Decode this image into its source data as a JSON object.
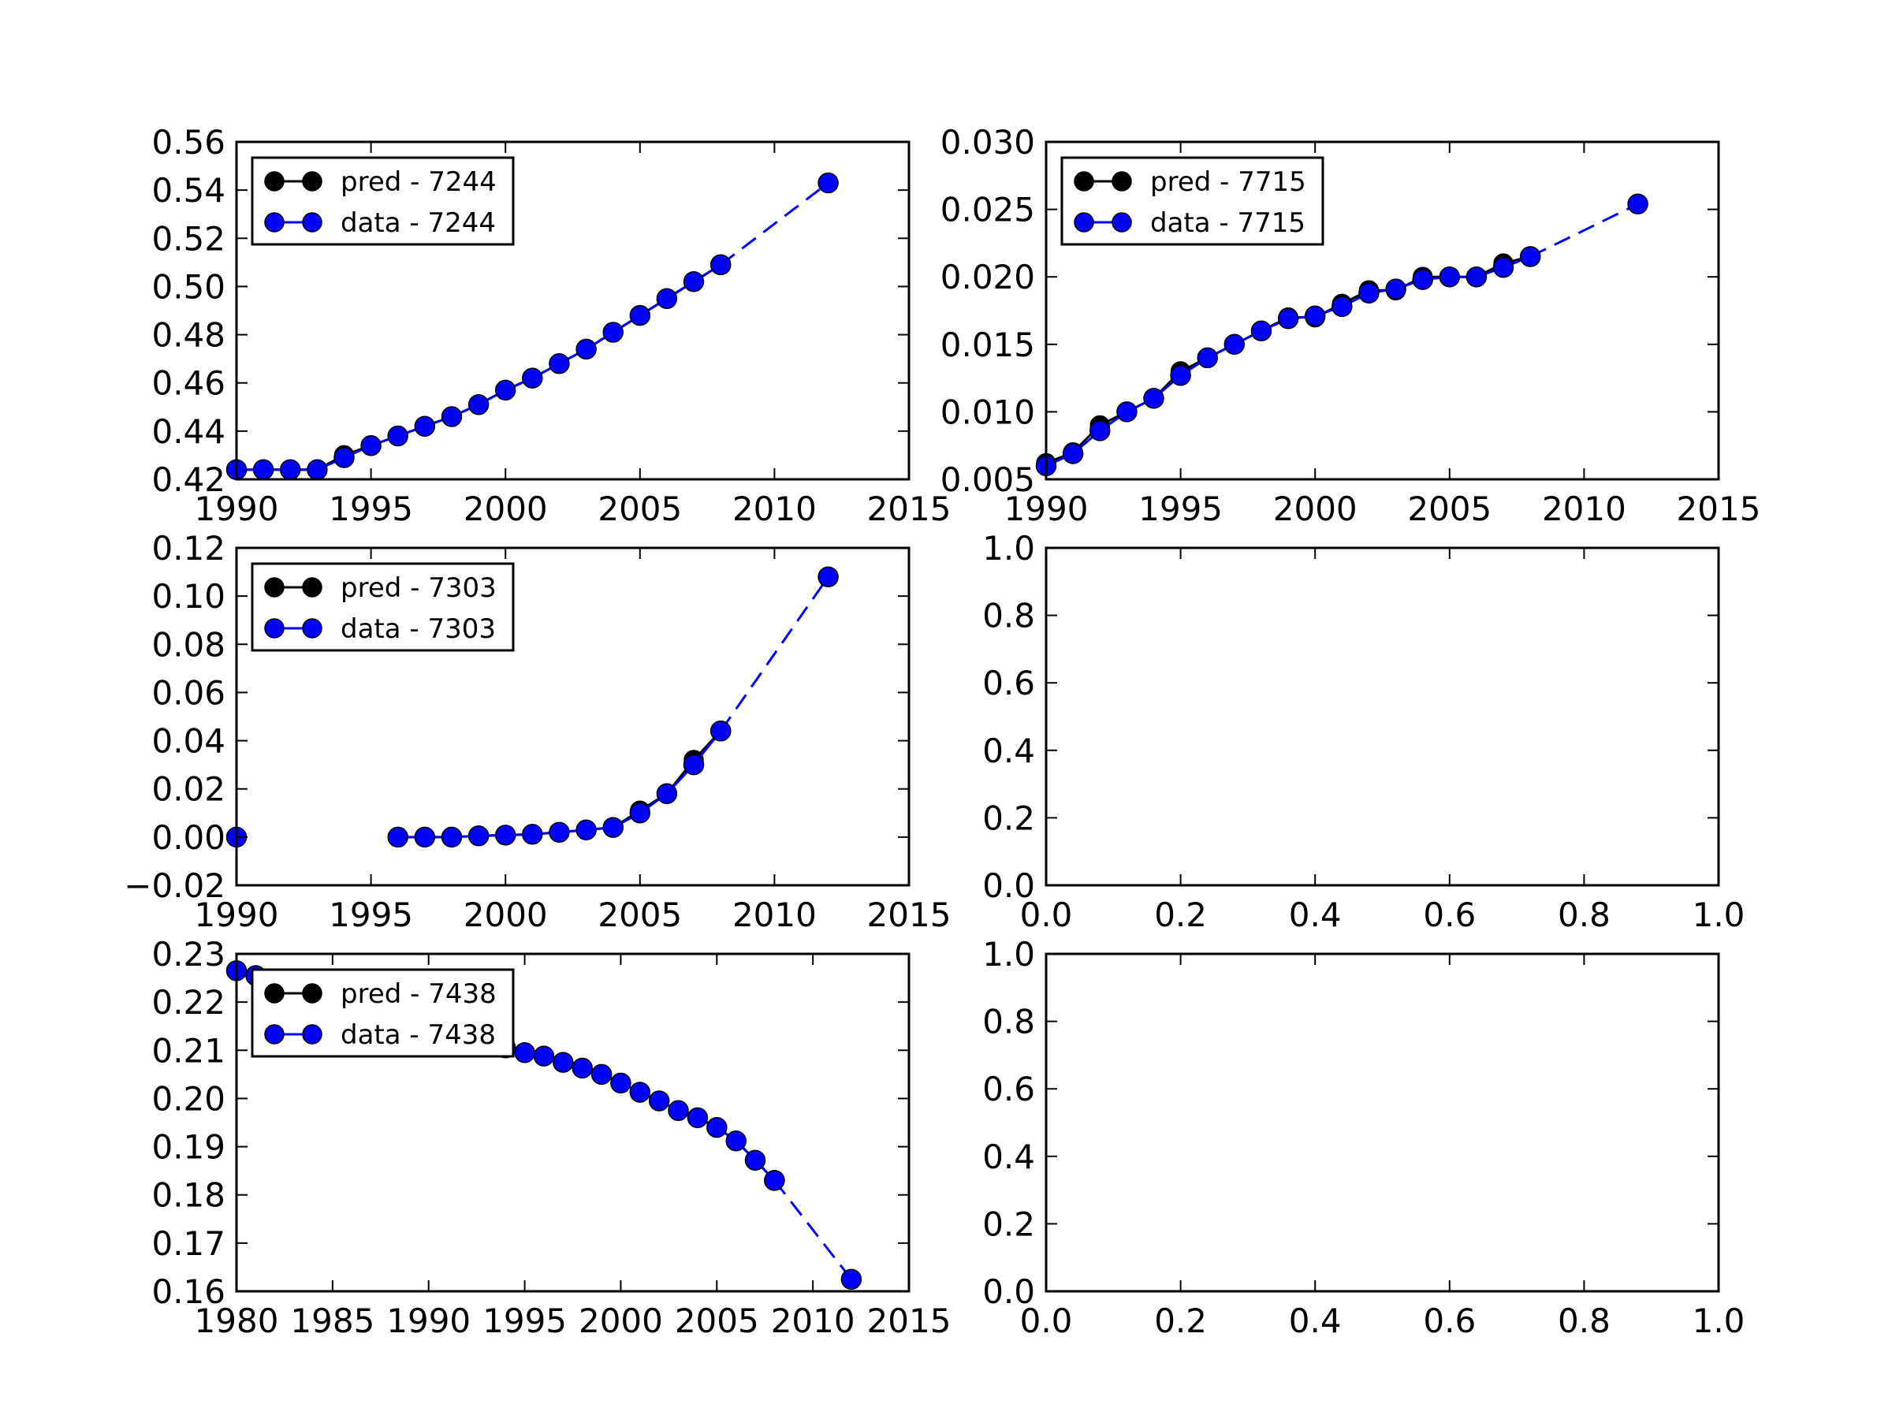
{
  "colors": {
    "pred": "#000000",
    "data": "#0000ff",
    "frame": "#000000",
    "background": "#ffffff"
  },
  "chart_data": [
    {
      "type": "line",
      "title": "",
      "xlabel": "",
      "ylabel": "",
      "xlim": [
        1990,
        2015
      ],
      "ylim": [
        0.42,
        0.56
      ],
      "xticks": [
        1990,
        1995,
        2000,
        2005,
        2010,
        2015
      ],
      "yticks": [
        0.42,
        0.44,
        0.46,
        0.48,
        0.5,
        0.52,
        0.54,
        0.56
      ],
      "xtick_labels": [
        "1990",
        "1995",
        "2000",
        "2005",
        "2010",
        "2015"
      ],
      "ytick_labels": [
        "0.42",
        "0.44",
        "0.46",
        "0.48",
        "0.50",
        "0.52",
        "0.54",
        "0.56"
      ],
      "legend": "upper-left",
      "series": [
        {
          "name": "pred - 7244",
          "color": "black",
          "style": "solid",
          "marker": "circle",
          "x": [
            1990,
            1991,
            1992,
            1993,
            1994,
            1995,
            1996,
            1997,
            1998,
            1999,
            2000,
            2001,
            2002,
            2003,
            2004,
            2005,
            2006,
            2007,
            2008
          ],
          "y": [
            0.424,
            0.424,
            0.424,
            0.424,
            0.43,
            0.434,
            0.438,
            0.442,
            0.446,
            0.451,
            0.457,
            0.462,
            0.468,
            0.474,
            0.481,
            0.488,
            0.495,
            0.502,
            0.509
          ]
        },
        {
          "name": "data - 7244",
          "color": "blue",
          "style": "solid",
          "marker": "circle",
          "x": [
            1990,
            1991,
            1992,
            1993,
            1994,
            1995,
            1996,
            1997,
            1998,
            1999,
            2000,
            2001,
            2002,
            2003,
            2004,
            2005,
            2006,
            2007,
            2008
          ],
          "y": [
            0.424,
            0.424,
            0.424,
            0.424,
            0.429,
            0.434,
            0.438,
            0.442,
            0.446,
            0.451,
            0.457,
            0.462,
            0.468,
            0.474,
            0.481,
            0.488,
            0.495,
            0.502,
            0.509
          ]
        },
        {
          "name": "",
          "color": "blue",
          "style": "dashed",
          "marker": "circle",
          "in_legend": false,
          "x": [
            2008,
            2012
          ],
          "y": [
            0.509,
            0.543
          ]
        }
      ]
    },
    {
      "type": "line",
      "title": "",
      "xlabel": "",
      "ylabel": "",
      "xlim": [
        1990,
        2015
      ],
      "ylim": [
        0.005,
        0.03
      ],
      "xticks": [
        1990,
        1995,
        2000,
        2005,
        2010,
        2015
      ],
      "yticks": [
        0.005,
        0.01,
        0.015,
        0.02,
        0.025,
        0.03
      ],
      "xtick_labels": [
        "1990",
        "1995",
        "2000",
        "2005",
        "2010",
        "2015"
      ],
      "ytick_labels": [
        "0.005",
        "0.010",
        "0.015",
        "0.020",
        "0.025",
        "0.030"
      ],
      "legend": "upper-left",
      "series": [
        {
          "name": "pred - 7715",
          "color": "black",
          "style": "solid",
          "marker": "circle",
          "x": [
            1990,
            1991,
            1992,
            1993,
            1994,
            1995,
            1996,
            1997,
            1998,
            1999,
            2000,
            2001,
            2002,
            2003,
            2004,
            2005,
            2006,
            2007,
            2008
          ],
          "y": [
            0.0062,
            0.007,
            0.009,
            0.01,
            0.011,
            0.013,
            0.014,
            0.015,
            0.016,
            0.017,
            0.017,
            0.018,
            0.019,
            0.019,
            0.02,
            0.02,
            0.02,
            0.021,
            0.0215
          ]
        },
        {
          "name": "data - 7715",
          "color": "blue",
          "style": "solid",
          "marker": "circle",
          "x": [
            1990,
            1991,
            1992,
            1993,
            1994,
            1995,
            1996,
            1997,
            1998,
            1999,
            2000,
            2001,
            2002,
            2003,
            2004,
            2005,
            2006,
            2007,
            2008
          ],
          "y": [
            0.006,
            0.0069,
            0.0086,
            0.01,
            0.011,
            0.0127,
            0.014,
            0.015,
            0.016,
            0.0169,
            0.0171,
            0.0178,
            0.0188,
            0.0191,
            0.0198,
            0.02,
            0.02,
            0.0207,
            0.0215
          ]
        },
        {
          "name": "",
          "color": "blue",
          "style": "dashed",
          "marker": "circle",
          "in_legend": false,
          "x": [
            2008,
            2012
          ],
          "y": [
            0.0215,
            0.0254
          ]
        }
      ]
    },
    {
      "type": "line",
      "title": "",
      "xlabel": "",
      "ylabel": "",
      "xlim": [
        1990,
        2015
      ],
      "ylim": [
        -0.02,
        0.12
      ],
      "xticks": [
        1990,
        1995,
        2000,
        2005,
        2010,
        2015
      ],
      "yticks": [
        -0.02,
        0.0,
        0.02,
        0.04,
        0.06,
        0.08,
        0.1,
        0.12
      ],
      "xtick_labels": [
        "1990",
        "1995",
        "2000",
        "2005",
        "2010",
        "2015"
      ],
      "ytick_labels": [
        "−0.02",
        "0.00",
        "0.02",
        "0.04",
        "0.06",
        "0.08",
        "0.10",
        "0.12"
      ],
      "legend": "upper-left",
      "series": [
        {
          "name": "pred - 7303",
          "color": "black",
          "style": "solid",
          "marker": "circle",
          "segments": [
            {
              "x": [
                1990
              ],
              "y": [
                0.0
              ]
            },
            {
              "x": [
                1996,
                1997,
                1998,
                1999,
                2000,
                2001,
                2002,
                2003,
                2004,
                2005,
                2006,
                2007,
                2008
              ],
              "y": [
                0.0,
                0.0,
                0.0,
                0.0005,
                0.0008,
                0.0012,
                0.002,
                0.003,
                0.004,
                0.011,
                0.018,
                0.032,
                0.044
              ]
            }
          ]
        },
        {
          "name": "data - 7303",
          "color": "blue",
          "style": "solid",
          "marker": "circle",
          "segments": [
            {
              "x": [
                1990
              ],
              "y": [
                0.0
              ]
            },
            {
              "x": [
                1996,
                1997,
                1998,
                1999,
                2000,
                2001,
                2002,
                2003,
                2004,
                2005,
                2006,
                2007,
                2008
              ],
              "y": [
                0.0,
                0.0,
                0.0,
                0.0005,
                0.0008,
                0.0012,
                0.002,
                0.003,
                0.004,
                0.01,
                0.018,
                0.03,
                0.044
              ]
            }
          ]
        },
        {
          "name": "",
          "color": "blue",
          "style": "dashed",
          "marker": "circle",
          "in_legend": false,
          "x": [
            2008,
            2012
          ],
          "y": [
            0.044,
            0.108
          ]
        }
      ]
    },
    {
      "type": "line",
      "title": "",
      "xlabel": "",
      "ylabel": "",
      "xlim": [
        0.0,
        1.0
      ],
      "ylim": [
        0.0,
        1.0
      ],
      "xticks": [
        0.0,
        0.2,
        0.4,
        0.6,
        0.8,
        1.0
      ],
      "yticks": [
        0.0,
        0.2,
        0.4,
        0.6,
        0.8,
        1.0
      ],
      "xtick_labels": [
        "0.0",
        "0.2",
        "0.4",
        "0.6",
        "0.8",
        "1.0"
      ],
      "ytick_labels": [
        "0.0",
        "0.2",
        "0.4",
        "0.6",
        "0.8",
        "1.0"
      ],
      "legend": "none",
      "series": []
    },
    {
      "type": "line",
      "title": "",
      "xlabel": "",
      "ylabel": "",
      "xlim": [
        1980,
        2015
      ],
      "ylim": [
        0.16,
        0.23
      ],
      "xticks": [
        1980,
        1985,
        1990,
        1995,
        2000,
        2005,
        2010,
        2015
      ],
      "yticks": [
        0.16,
        0.17,
        0.18,
        0.19,
        0.2,
        0.21,
        0.22,
        0.23
      ],
      "xtick_labels": [
        "1980",
        "1985",
        "1990",
        "1995",
        "2000",
        "2005",
        "2010",
        "2015"
      ],
      "ytick_labels": [
        "0.16",
        "0.17",
        "0.18",
        "0.19",
        "0.20",
        "0.21",
        "0.22",
        "0.23"
      ],
      "legend": "upper-left",
      "series": [
        {
          "name": "pred - 7438",
          "color": "black",
          "style": "solid",
          "marker": "circle",
          "x": [
            1980,
            1981,
            1982,
            1983,
            1984,
            1985,
            1986,
            1987,
            1988,
            1989,
            1990,
            1991,
            1992,
            1993,
            1994,
            1995,
            1996,
            1997,
            1998,
            1999,
            2000,
            2001,
            2002,
            2003,
            2004,
            2005,
            2006,
            2007,
            2008
          ],
          "y": [
            0.2265,
            0.2255,
            0.2245,
            0.2235,
            0.2225,
            0.2215,
            0.2205,
            0.2195,
            0.2185,
            0.2175,
            0.216,
            0.215,
            0.214,
            0.2125,
            0.2105,
            0.2095,
            0.2088,
            0.2075,
            0.2063,
            0.205,
            0.2032,
            0.2013,
            0.1995,
            0.1975,
            0.196,
            0.194,
            0.1912,
            0.1872,
            0.183
          ]
        },
        {
          "name": "data - 7438",
          "color": "blue",
          "style": "solid",
          "marker": "circle",
          "x": [
            1980,
            1981,
            1982,
            1983,
            1984,
            1985,
            1986,
            1987,
            1988,
            1989,
            1990,
            1991,
            1992,
            1993,
            1994,
            1995,
            1996,
            1997,
            1998,
            1999,
            2000,
            2001,
            2002,
            2003,
            2004,
            2005,
            2006,
            2007,
            2008
          ],
          "y": [
            0.2265,
            0.2255,
            0.2245,
            0.2235,
            0.2225,
            0.2215,
            0.2205,
            0.2195,
            0.2185,
            0.2175,
            0.216,
            0.215,
            0.214,
            0.2125,
            0.2105,
            0.2095,
            0.2088,
            0.2075,
            0.2063,
            0.205,
            0.2032,
            0.2013,
            0.1995,
            0.1975,
            0.196,
            0.194,
            0.1912,
            0.1872,
            0.183
          ]
        },
        {
          "name": "",
          "color": "blue",
          "style": "dashed",
          "marker": "circle",
          "in_legend": false,
          "x": [
            2008,
            2012
          ],
          "y": [
            0.183,
            0.1625
          ]
        }
      ]
    },
    {
      "type": "line",
      "title": "",
      "xlabel": "",
      "ylabel": "",
      "xlim": [
        0.0,
        1.0
      ],
      "ylim": [
        0.0,
        1.0
      ],
      "xticks": [
        0.0,
        0.2,
        0.4,
        0.6,
        0.8,
        1.0
      ],
      "yticks": [
        0.0,
        0.2,
        0.4,
        0.6,
        0.8,
        1.0
      ],
      "xtick_labels": [
        "0.0",
        "0.2",
        "0.4",
        "0.6",
        "0.8",
        "1.0"
      ],
      "ytick_labels": [
        "0.0",
        "0.2",
        "0.4",
        "0.6",
        "0.8",
        "1.0"
      ],
      "legend": "none",
      "series": []
    }
  ]
}
